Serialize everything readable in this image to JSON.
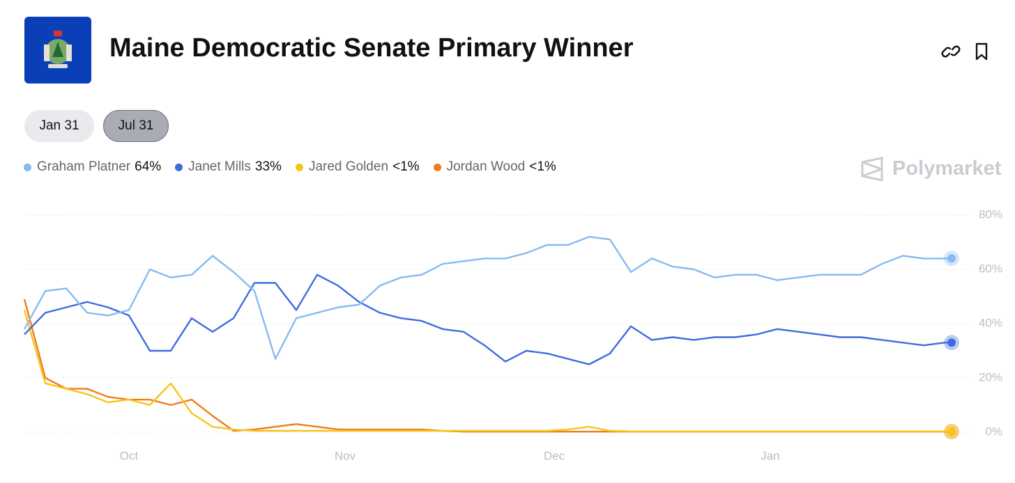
{
  "header": {
    "title": "Maine Democratic Senate Primary Winner"
  },
  "buttons": [
    "Jan 31",
    "Jul 31"
  ],
  "brand": "Polymarket",
  "chart_data": {
    "type": "line",
    "x": [
      0,
      3,
      6,
      9,
      12,
      15,
      18,
      21,
      24,
      27,
      30,
      33,
      36,
      39,
      42,
      45,
      48,
      51,
      54,
      57,
      60,
      63,
      66,
      69,
      72,
      75,
      78,
      81,
      84,
      87,
      90,
      93,
      96,
      99,
      102,
      105,
      108,
      111,
      114,
      117,
      120,
      123,
      126,
      129,
      132,
      133
    ],
    "xlim": [
      0,
      133
    ],
    "xticks": [
      {
        "value": 15,
        "label": "Oct"
      },
      {
        "value": 46,
        "label": "Nov"
      },
      {
        "value": 76,
        "label": "Dec"
      },
      {
        "value": 107,
        "label": "Jan"
      }
    ],
    "ylim": [
      0,
      80
    ],
    "yticks": [
      {
        "value": 0,
        "label": "0%"
      },
      {
        "value": 20,
        "label": "20%"
      },
      {
        "value": 40,
        "label": "40%"
      },
      {
        "value": 60,
        "label": "60%"
      },
      {
        "value": 80,
        "label": "80%"
      }
    ],
    "grid": true,
    "series": [
      {
        "name": "Graham Platner",
        "legend_value": "64%",
        "color": "#86baf0",
        "values": [
          38,
          52,
          53,
          44,
          43,
          45,
          60,
          57,
          58,
          65,
          59,
          52,
          27,
          42,
          44,
          46,
          47,
          54,
          57,
          58,
          62,
          63,
          64,
          64,
          66,
          69,
          69,
          72,
          71,
          59,
          64,
          61,
          60,
          57,
          58,
          58,
          56,
          57,
          58,
          58,
          58,
          62,
          65,
          64,
          64,
          64
        ]
      },
      {
        "name": "Janet Mills",
        "legend_value": "33%",
        "color": "#3e6be0",
        "values": [
          36,
          44,
          46,
          48,
          46,
          43,
          30,
          30,
          42,
          37,
          42,
          55,
          55,
          45,
          58,
          54,
          48,
          44,
          42,
          41,
          38,
          37,
          32,
          26,
          30,
          29,
          27,
          25,
          29,
          39,
          34,
          35,
          34,
          35,
          35,
          36,
          38,
          37,
          36,
          35,
          35,
          34,
          33,
          32,
          33,
          33
        ]
      },
      {
        "name": "Jared Golden",
        "legend_value": "<1%",
        "color": "#f5c518",
        "values": [
          45,
          18,
          16,
          14,
          11,
          12,
          10,
          18,
          7,
          2,
          1,
          0.5,
          0.5,
          0.5,
          0.5,
          0.5,
          0.5,
          0.5,
          0.5,
          0.5,
          0.5,
          0.5,
          0.5,
          0.5,
          0.5,
          0.5,
          1,
          2,
          0.5,
          0.3,
          0.3,
          0.3,
          0.3,
          0.3,
          0.3,
          0.3,
          0.3,
          0.3,
          0.3,
          0.3,
          0.3,
          0.3,
          0.3,
          0.3,
          0.3,
          0.3
        ]
      },
      {
        "name": "Jordan Wood",
        "legend_value": "<1%",
        "color": "#f27b1a",
        "values": [
          49,
          20,
          16,
          16,
          13,
          12,
          12,
          10,
          12,
          6,
          0.5,
          1,
          2,
          3,
          2,
          1,
          1,
          1,
          1,
          1,
          0.5,
          0.2,
          0.2,
          0.2,
          0.2,
          0.2,
          0.2,
          0.2,
          0.2,
          0.2,
          0.2,
          0.2,
          0.2,
          0.2,
          0.2,
          0.2,
          0.2,
          0.2,
          0.2,
          0.2,
          0.2,
          0.2,
          0.2,
          0.2,
          0.2,
          0.2
        ]
      }
    ]
  }
}
